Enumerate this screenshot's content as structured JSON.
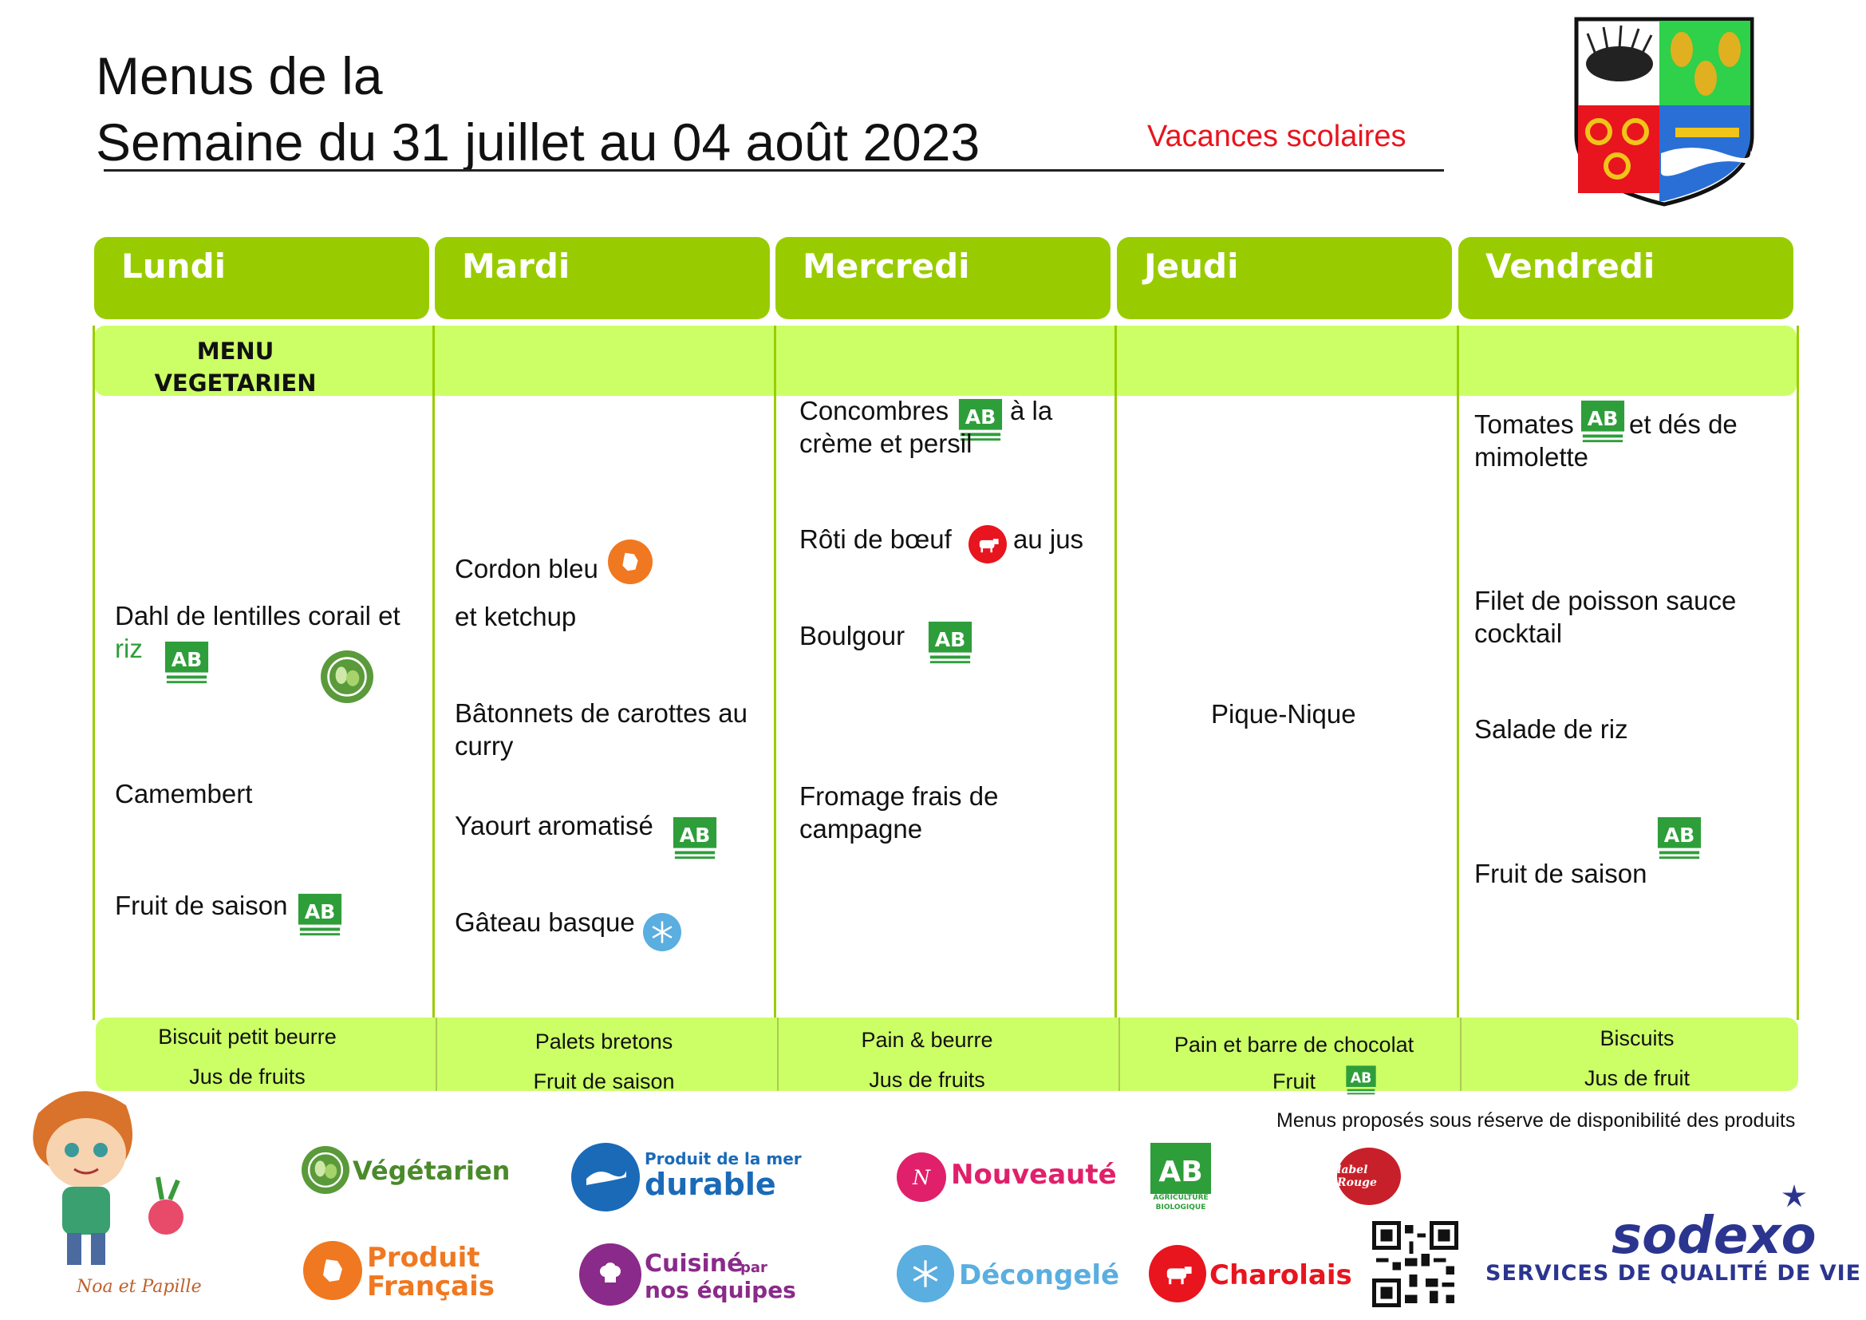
{
  "header": {
    "title_line1": "Menus de la",
    "title_line2": "Semaine du 31 juillet au 04 août 2023",
    "note": "Vacances scolaires"
  },
  "days": [
    {
      "label": "Lundi"
    },
    {
      "label": "Mardi"
    },
    {
      "label": "Mercredi"
    },
    {
      "label": "Jeudi"
    },
    {
      "label": "Vendredi"
    }
  ],
  "lundi": {
    "tag": "MENU VEGETARIEN",
    "dish1": "Dahl de lentilles corail et",
    "dish1b": "riz",
    "dish2": "Camembert",
    "dish3": "Fruit de saison",
    "gouter1": "Biscuit petit beurre",
    "gouter2": "Jus de fruits"
  },
  "mardi": {
    "dish1": "Cordon bleu",
    "dish1b": "et ketchup",
    "dish2": "Bâtonnets de carottes au",
    "dish2b": "curry",
    "dish3": "Yaourt aromatisé",
    "dish4": "Gâteau basque",
    "gouter1": "Palets bretons",
    "gouter2": "Fruit de saison"
  },
  "mercredi": {
    "dish1": "Concombres",
    "dish1x": "à la",
    "dish1b": "crème et persil",
    "dish2": "Rôti de bœuf",
    "dish2x": "au jus",
    "dish3": "Boulgour",
    "dish4": "Fromage frais de",
    "dish4b": "campagne",
    "gouter1": "Pain & beurre",
    "gouter2": "Jus de fruits"
  },
  "jeudi": {
    "dish1": "Pique-Nique",
    "gouter1": "Pain et barre de chocolat",
    "gouter2": "Fruit"
  },
  "vendredi": {
    "dish1": "Tomates",
    "dish1x": "et dés de",
    "dish1b": "mimolette",
    "dish2": "Filet de poisson sauce",
    "dish2b": "cocktail",
    "dish3": "Salade de riz",
    "dish4": "Fruit de saison",
    "gouter1": "Biscuits",
    "gouter2": "Jus de fruit"
  },
  "disclaimer": "Menus proposés sous réserve de disponibilité des produits",
  "legend": {
    "vegetarien": "Végétarien",
    "mer_line1": "Produit de la mer",
    "mer_line2": "durable",
    "nouveaute": "Nouveauté",
    "ab_line1": "AGRICULTURE",
    "ab_line2": "BIOLOGIQUE",
    "label_rouge": "label Rouge",
    "produit_line1": "Produit",
    "produit_line2": "Français",
    "cuisine_line1": "Cuisiné",
    "cuisine_par": "par",
    "cuisine_line2": "nos équipes",
    "decongele": "Décongelé",
    "charolais": "Charolais"
  },
  "brand": {
    "name": "sodexo",
    "tagline": "SERVICES DE QUALITÉ DE VIE",
    "mascot": "Noa et Papille"
  },
  "colors": {
    "header_green": "#99cc00",
    "band_green": "#ccff66",
    "accent_red": "#e8141e",
    "sodexo_blue": "#2b3590"
  }
}
